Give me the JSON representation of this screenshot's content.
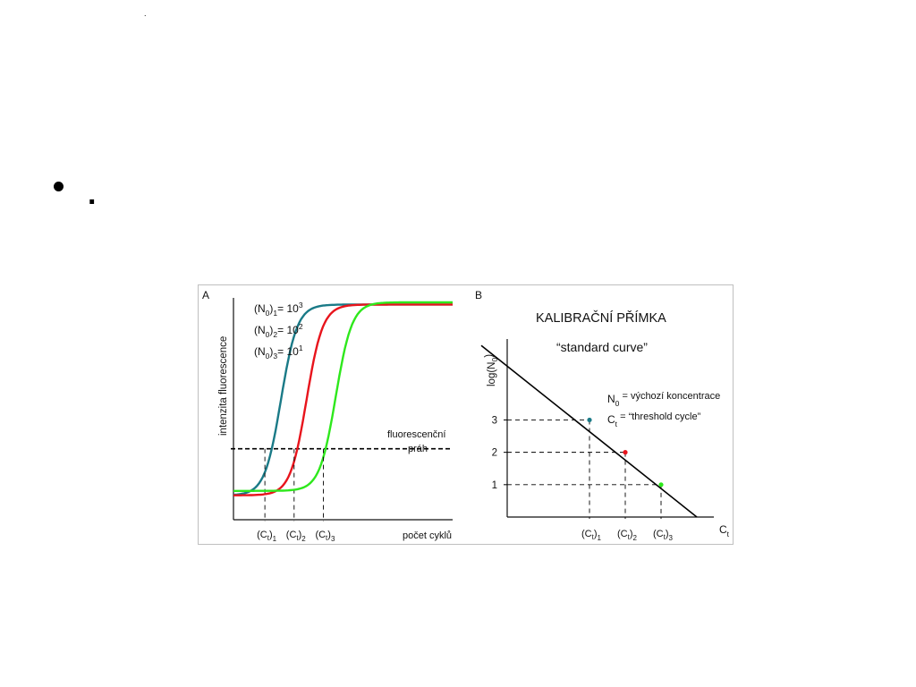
{
  "slide": {
    "top_mark": ".",
    "bullet_text": "."
  },
  "colors": {
    "series_1": "#1a7a87",
    "series_2": "#e8141c",
    "series_3": "#2ee81c",
    "legend_1": "#3a5a8c",
    "legend_2": "#e0441c",
    "legend_3": "#2ee81c",
    "axis": "#111111"
  },
  "chart_data": [
    {
      "type": "line",
      "panel_label": "A",
      "ylabel": "intenzita fluorescence",
      "xlabel": "počet cyklů",
      "threshold_label_line1": "fluorescenční",
      "threshold_label_line2": "práh",
      "threshold": 0.32,
      "xlim": [
        0,
        30
      ],
      "ylim": [
        0,
        1
      ],
      "grid": false,
      "legend_position": "top-left",
      "series": [
        {
          "legend_base": "(N",
          "legend_sub1": "0",
          "legend_mid": ")",
          "legend_sub2": "1",
          "legend_eq": "= 10",
          "legend_sup": "3",
          "midpoint": 6.5,
          "low": 0.11,
          "high": 0.97,
          "ct": 4.3,
          "ct_label": "(C",
          "ct_sub1": "t",
          "ct_mid": ")",
          "ct_sub2": "1"
        },
        {
          "legend_base": "(N",
          "legend_sub1": "0",
          "legend_mid": ")",
          "legend_sub2": "2",
          "legend_eq": "= 10",
          "legend_sup": "2",
          "midpoint": 10.0,
          "low": 0.11,
          "high": 0.97,
          "ct": 8.3,
          "ct_label": "(C",
          "ct_sub1": "t",
          "ct_mid": ")",
          "ct_sub2": "2"
        },
        {
          "legend_base": "(N",
          "legend_sub1": "0",
          "legend_mid": ")",
          "legend_sub2": "3",
          "legend_eq": "= 10",
          "legend_sup": "1",
          "midpoint": 14.0,
          "low": 0.13,
          "high": 0.98,
          "ct": 12.3,
          "ct_label": "(C",
          "ct_sub1": "t",
          "ct_mid": ")",
          "ct_sub2": "3"
        }
      ]
    },
    {
      "type": "line",
      "panel_label": "B",
      "title": "KALIBRAČNÍ PŘÍMKA",
      "subtitle": "“standard curve”",
      "ylabel_base": "log(N",
      "ylabel_sub": "0",
      "ylabel_end": ")",
      "xlabel_base": "C",
      "xlabel_sub": "t",
      "yticks": [
        "1",
        "2",
        "3"
      ],
      "ylim": [
        0,
        5.5
      ],
      "grid": false,
      "note_1_base": "N",
      "note_1_sub": "0",
      "note_1_text": " = výchozí koncentrace",
      "note_2_base": "C",
      "note_2_sub": "t",
      "note_2_text": "  = “threshold cycle”",
      "line": {
        "y_at_axis": 5.3,
        "x_at_zero": 1.0
      },
      "points": [
        {
          "log_n0": 3,
          "ct_label": "(C",
          "ct_sub1": "t",
          "ct_mid": ")",
          "ct_sub2": "1"
        },
        {
          "log_n0": 2,
          "ct_label": "(C",
          "ct_sub1": "t",
          "ct_mid": ")",
          "ct_sub2": "2"
        },
        {
          "log_n0": 1,
          "ct_label": "(C",
          "ct_sub1": "t",
          "ct_mid": ")",
          "ct_sub2": "3"
        }
      ]
    }
  ]
}
